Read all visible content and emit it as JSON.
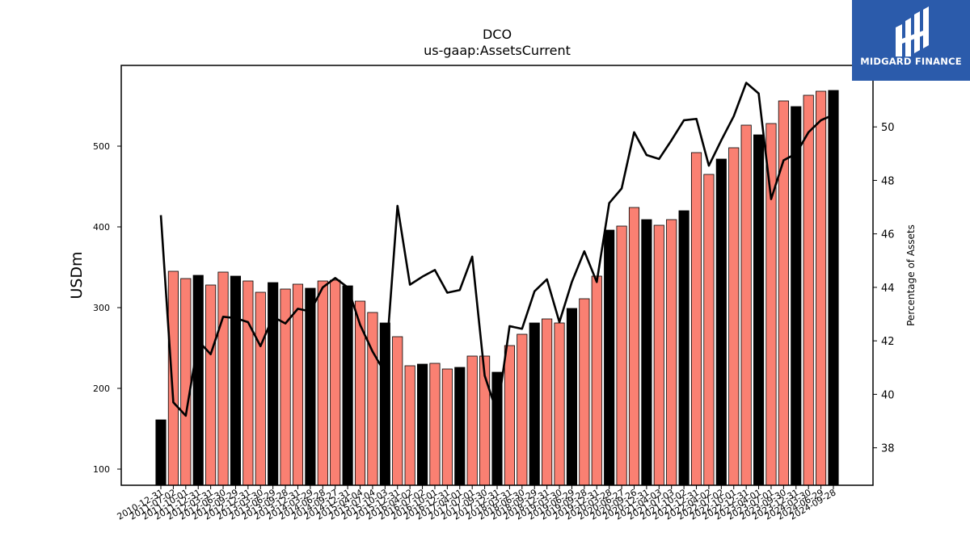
{
  "brand": {
    "name": "MIDGARD FINANCE",
    "color": "#2b5bab"
  },
  "chart_data": {
    "type": "bar",
    "title": "DCO",
    "subtitle": "us-gaap:AssetsCurrent",
    "ylabel": "USDm",
    "y2label": "Percentage of Assets",
    "ylim": [
      80,
      600
    ],
    "y2lim": [
      36.6,
      52.3
    ],
    "yticks": [
      100,
      200,
      300,
      400,
      500
    ],
    "y2ticks": [
      38,
      40,
      42,
      44,
      46,
      48,
      50
    ],
    "colors": {
      "annual": "#000000",
      "quarterly": "#fa8072",
      "line": "#000000"
    },
    "categories": [
      "2010-12-31",
      "2011-07-02",
      "2011-10-01",
      "2011-12-31",
      "2012-03-31",
      "2012-06-30",
      "2012-09-29",
      "2012-12-31",
      "2013-03-30",
      "2013-06-29",
      "2013-09-28",
      "2013-12-31",
      "2014-03-29",
      "2014-06-28",
      "2014-09-27",
      "2014-12-31",
      "2015-04-04",
      "2015-07-04",
      "2015-10-03",
      "2015-12-31",
      "2016-04-02",
      "2016-07-02",
      "2016-10-01",
      "2016-12-31",
      "2017-04-01",
      "2017-07-01",
      "2017-09-30",
      "2017-12-31",
      "2018-03-31",
      "2018-06-30",
      "2018-09-29",
      "2018-12-31",
      "2019-03-30",
      "2019-06-29",
      "2019-09-28",
      "2019-12-31",
      "2020-03-28",
      "2020-06-27",
      "2020-09-26",
      "2020-12-31",
      "2021-04-03",
      "2021-07-03",
      "2021-10-02",
      "2021-12-31",
      "2022-04-02",
      "2022-07-02",
      "2022-10-01",
      "2022-12-31",
      "2023-04-01",
      "2023-07-01",
      "2023-09-30",
      "2023-12-31",
      "2024-03-30",
      "2024-06-29",
      "2024-09-28"
    ],
    "annual": [
      true,
      false,
      false,
      true,
      false,
      false,
      true,
      false,
      false,
      true,
      false,
      false,
      true,
      false,
      false,
      true,
      false,
      false,
      true,
      false,
      false,
      true,
      false,
      false,
      true,
      false,
      false,
      true,
      false,
      false,
      true,
      false,
      false,
      true,
      false,
      false,
      true,
      false,
      false,
      true,
      false,
      false,
      true,
      false,
      false,
      true,
      false,
      false,
      true,
      false,
      false,
      true,
      false,
      false,
      true
    ],
    "values": [
      161,
      345,
      336,
      340,
      328,
      344,
      339,
      333,
      319,
      331,
      323,
      329,
      324,
      333,
      334,
      327,
      308,
      294,
      281,
      264,
      228,
      230,
      231,
      224,
      226,
      240,
      240,
      220,
      253,
      267,
      281,
      286,
      281,
      299,
      311,
      339,
      396,
      401,
      424,
      409,
      402,
      409,
      420,
      492,
      465,
      484,
      498,
      526,
      514,
      528,
      556,
      549,
      563,
      568,
      569
    ],
    "line": {
      "name": "",
      "values": [
        46.7,
        39.7,
        39.2,
        42.0,
        41.5,
        42.9,
        42.85,
        42.7,
        41.8,
        42.9,
        42.65,
        43.2,
        43.1,
        44.0,
        44.35,
        44.0,
        42.6,
        41.6,
        40.8,
        47.05,
        44.1,
        44.4,
        44.65,
        43.8,
        43.9,
        45.15,
        40.7,
        39.3,
        42.55,
        42.45,
        43.85,
        44.3,
        42.7,
        44.2,
        45.35,
        44.2,
        47.15,
        47.7,
        49.8,
        48.95,
        48.8,
        49.5,
        50.25,
        50.3,
        48.55,
        49.5,
        50.4,
        51.65,
        51.25,
        47.3,
        48.75,
        49.0,
        49.8,
        50.25,
        50.45
      ]
    }
  }
}
